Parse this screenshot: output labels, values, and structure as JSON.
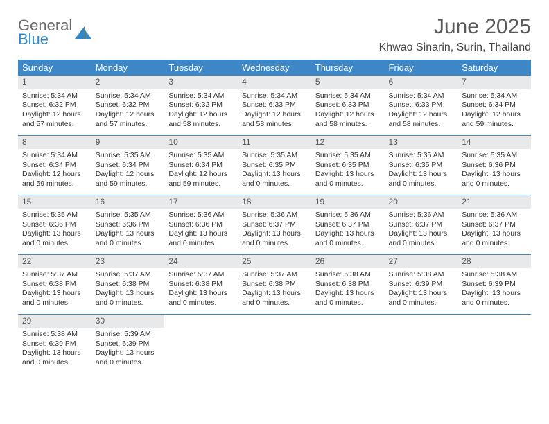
{
  "brand": {
    "line1": "General",
    "line2": "Blue",
    "color1": "#6a6a6a",
    "color2": "#2f88c5",
    "icon_color": "#2f88c5"
  },
  "title": "June 2025",
  "location": "Khwao Sinarin, Surin, Thailand",
  "header_bg": "#3d87c7",
  "header_fg": "#ffffff",
  "daynum_bg": "#e7e9eb",
  "text_color": "#333333",
  "week_sep_color": "#3d87c7",
  "weekdays": [
    "Sunday",
    "Monday",
    "Tuesday",
    "Wednesday",
    "Thursday",
    "Friday",
    "Saturday"
  ],
  "weeks": [
    [
      {
        "n": "1",
        "sunrise": "Sunrise: 5:34 AM",
        "sunset": "Sunset: 6:32 PM",
        "day": "Daylight: 12 hours and 57 minutes."
      },
      {
        "n": "2",
        "sunrise": "Sunrise: 5:34 AM",
        "sunset": "Sunset: 6:32 PM",
        "day": "Daylight: 12 hours and 57 minutes."
      },
      {
        "n": "3",
        "sunrise": "Sunrise: 5:34 AM",
        "sunset": "Sunset: 6:32 PM",
        "day": "Daylight: 12 hours and 58 minutes."
      },
      {
        "n": "4",
        "sunrise": "Sunrise: 5:34 AM",
        "sunset": "Sunset: 6:33 PM",
        "day": "Daylight: 12 hours and 58 minutes."
      },
      {
        "n": "5",
        "sunrise": "Sunrise: 5:34 AM",
        "sunset": "Sunset: 6:33 PM",
        "day": "Daylight: 12 hours and 58 minutes."
      },
      {
        "n": "6",
        "sunrise": "Sunrise: 5:34 AM",
        "sunset": "Sunset: 6:33 PM",
        "day": "Daylight: 12 hours and 58 minutes."
      },
      {
        "n": "7",
        "sunrise": "Sunrise: 5:34 AM",
        "sunset": "Sunset: 6:34 PM",
        "day": "Daylight: 12 hours and 59 minutes."
      }
    ],
    [
      {
        "n": "8",
        "sunrise": "Sunrise: 5:34 AM",
        "sunset": "Sunset: 6:34 PM",
        "day": "Daylight: 12 hours and 59 minutes."
      },
      {
        "n": "9",
        "sunrise": "Sunrise: 5:35 AM",
        "sunset": "Sunset: 6:34 PM",
        "day": "Daylight: 12 hours and 59 minutes."
      },
      {
        "n": "10",
        "sunrise": "Sunrise: 5:35 AM",
        "sunset": "Sunset: 6:34 PM",
        "day": "Daylight: 12 hours and 59 minutes."
      },
      {
        "n": "11",
        "sunrise": "Sunrise: 5:35 AM",
        "sunset": "Sunset: 6:35 PM",
        "day": "Daylight: 13 hours and 0 minutes."
      },
      {
        "n": "12",
        "sunrise": "Sunrise: 5:35 AM",
        "sunset": "Sunset: 6:35 PM",
        "day": "Daylight: 13 hours and 0 minutes."
      },
      {
        "n": "13",
        "sunrise": "Sunrise: 5:35 AM",
        "sunset": "Sunset: 6:35 PM",
        "day": "Daylight: 13 hours and 0 minutes."
      },
      {
        "n": "14",
        "sunrise": "Sunrise: 5:35 AM",
        "sunset": "Sunset: 6:36 PM",
        "day": "Daylight: 13 hours and 0 minutes."
      }
    ],
    [
      {
        "n": "15",
        "sunrise": "Sunrise: 5:35 AM",
        "sunset": "Sunset: 6:36 PM",
        "day": "Daylight: 13 hours and 0 minutes."
      },
      {
        "n": "16",
        "sunrise": "Sunrise: 5:35 AM",
        "sunset": "Sunset: 6:36 PM",
        "day": "Daylight: 13 hours and 0 minutes."
      },
      {
        "n": "17",
        "sunrise": "Sunrise: 5:36 AM",
        "sunset": "Sunset: 6:36 PM",
        "day": "Daylight: 13 hours and 0 minutes."
      },
      {
        "n": "18",
        "sunrise": "Sunrise: 5:36 AM",
        "sunset": "Sunset: 6:37 PM",
        "day": "Daylight: 13 hours and 0 minutes."
      },
      {
        "n": "19",
        "sunrise": "Sunrise: 5:36 AM",
        "sunset": "Sunset: 6:37 PM",
        "day": "Daylight: 13 hours and 0 minutes."
      },
      {
        "n": "20",
        "sunrise": "Sunrise: 5:36 AM",
        "sunset": "Sunset: 6:37 PM",
        "day": "Daylight: 13 hours and 0 minutes."
      },
      {
        "n": "21",
        "sunrise": "Sunrise: 5:36 AM",
        "sunset": "Sunset: 6:37 PM",
        "day": "Daylight: 13 hours and 0 minutes."
      }
    ],
    [
      {
        "n": "22",
        "sunrise": "Sunrise: 5:37 AM",
        "sunset": "Sunset: 6:38 PM",
        "day": "Daylight: 13 hours and 0 minutes."
      },
      {
        "n": "23",
        "sunrise": "Sunrise: 5:37 AM",
        "sunset": "Sunset: 6:38 PM",
        "day": "Daylight: 13 hours and 0 minutes."
      },
      {
        "n": "24",
        "sunrise": "Sunrise: 5:37 AM",
        "sunset": "Sunset: 6:38 PM",
        "day": "Daylight: 13 hours and 0 minutes."
      },
      {
        "n": "25",
        "sunrise": "Sunrise: 5:37 AM",
        "sunset": "Sunset: 6:38 PM",
        "day": "Daylight: 13 hours and 0 minutes."
      },
      {
        "n": "26",
        "sunrise": "Sunrise: 5:38 AM",
        "sunset": "Sunset: 6:38 PM",
        "day": "Daylight: 13 hours and 0 minutes."
      },
      {
        "n": "27",
        "sunrise": "Sunrise: 5:38 AM",
        "sunset": "Sunset: 6:39 PM",
        "day": "Daylight: 13 hours and 0 minutes."
      },
      {
        "n": "28",
        "sunrise": "Sunrise: 5:38 AM",
        "sunset": "Sunset: 6:39 PM",
        "day": "Daylight: 13 hours and 0 minutes."
      }
    ],
    [
      {
        "n": "29",
        "sunrise": "Sunrise: 5:38 AM",
        "sunset": "Sunset: 6:39 PM",
        "day": "Daylight: 13 hours and 0 minutes."
      },
      {
        "n": "30",
        "sunrise": "Sunrise: 5:39 AM",
        "sunset": "Sunset: 6:39 PM",
        "day": "Daylight: 13 hours and 0 minutes."
      },
      {
        "empty": true
      },
      {
        "empty": true
      },
      {
        "empty": true
      },
      {
        "empty": true
      },
      {
        "empty": true
      }
    ]
  ]
}
